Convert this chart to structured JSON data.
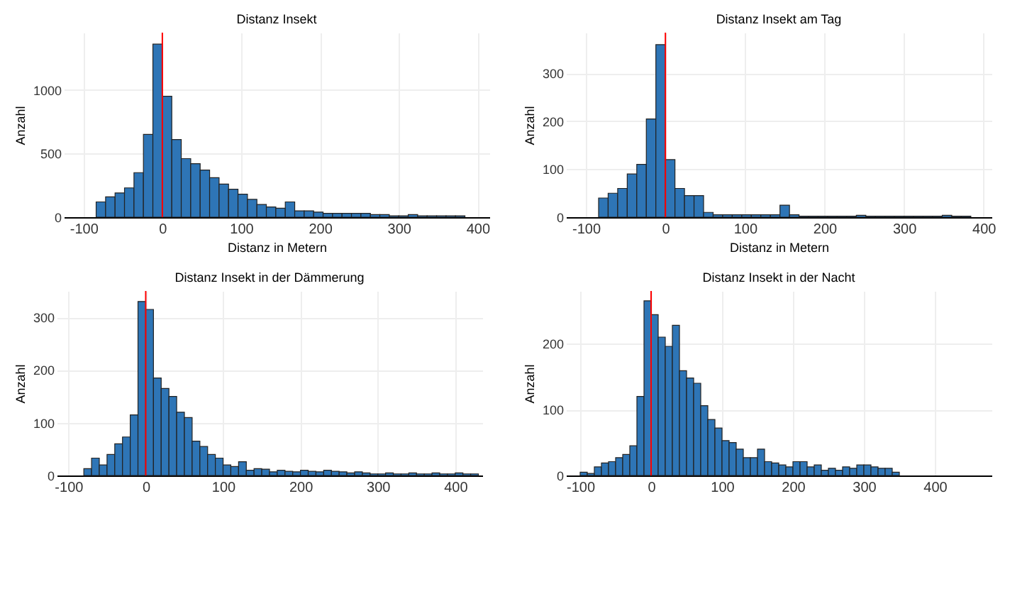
{
  "chart_data": [
    {
      "type": "histogram",
      "title": "Distanz Insekt",
      "xlabel": "Distanz in Metern",
      "ylabel": "Anzahl",
      "grid": true,
      "color": "#2e75b6",
      "xlim": [
        -125,
        415
      ],
      "xticks": [
        -100,
        0,
        100,
        200,
        300,
        400
      ],
      "ylim": [
        0,
        1450
      ],
      "yticks": [
        0,
        500,
        1000
      ],
      "bins": [
        -84,
        -72,
        -60,
        -48,
        -36,
        -24,
        -12,
        0,
        12,
        24,
        36,
        48,
        60,
        72,
        84,
        96,
        108,
        120,
        132,
        144,
        156,
        168,
        180,
        192,
        204,
        216,
        228,
        240,
        252,
        264,
        276,
        288,
        300,
        312,
        324,
        336,
        348,
        360,
        372,
        384
      ],
      "values": [
        120,
        160,
        190,
        230,
        350,
        650,
        1360,
        950,
        610,
        460,
        420,
        370,
        310,
        260,
        220,
        180,
        140,
        100,
        80,
        70,
        120,
        50,
        50,
        40,
        30,
        30,
        30,
        30,
        30,
        20,
        20,
        10,
        10,
        20,
        10,
        10,
        10,
        10,
        10
      ],
      "ref_lines": [
        {
          "axis": "x",
          "value": 0,
          "color": "#ff0000"
        }
      ]
    },
    {
      "type": "histogram",
      "title": "Distanz Insekt am Tag",
      "xlabel": "Distanz in Metern",
      "ylabel": "Anzahl",
      "grid": true,
      "color": "#2e75b6",
      "xlim": [
        -125,
        410
      ],
      "xticks": [
        -100,
        0,
        100,
        200,
        300,
        400
      ],
      "ylim": [
        0,
        385
      ],
      "yticks": [
        0,
        100,
        200,
        300
      ],
      "bins": [
        -84,
        -72,
        -60,
        -48,
        -36,
        -24,
        -12,
        0,
        12,
        24,
        36,
        48,
        60,
        72,
        84,
        96,
        108,
        120,
        132,
        144,
        156,
        168,
        180,
        192,
        204,
        216,
        228,
        240,
        252,
        264,
        276,
        288,
        300,
        312,
        324,
        336,
        348,
        360,
        372,
        384
      ],
      "values": [
        40,
        50,
        60,
        90,
        110,
        205,
        360,
        120,
        60,
        45,
        45,
        10,
        5,
        5,
        5,
        5,
        5,
        5,
        5,
        25,
        5,
        2,
        2,
        2,
        2,
        2,
        2,
        4,
        2,
        2,
        2,
        2,
        2,
        2,
        2,
        2,
        4,
        2,
        2
      ],
      "ref_lines": [
        {
          "axis": "x",
          "value": 0,
          "color": "#ff0000"
        }
      ]
    },
    {
      "type": "histogram",
      "title": "Distanz Insekt in der Dämmerung",
      "ylabel": "Anzahl",
      "grid": true,
      "color": "#2e75b6",
      "xlim": [
        -115,
        435
      ],
      "xticks": [
        -100,
        0,
        100,
        200,
        300,
        400
      ],
      "ylim": [
        0,
        350
      ],
      "yticks": [
        0,
        100,
        200,
        300
      ],
      "bins": [
        -80,
        -70,
        -60,
        -50,
        -40,
        -30,
        -20,
        -10,
        0,
        10,
        20,
        30,
        40,
        50,
        60,
        70,
        80,
        90,
        100,
        110,
        120,
        130,
        140,
        150,
        160,
        170,
        180,
        190,
        200,
        210,
        220,
        230,
        240,
        250,
        260,
        270,
        280,
        290,
        300,
        310,
        320,
        330,
        340,
        350,
        360,
        370,
        380,
        390,
        400,
        410,
        420,
        430
      ],
      "values": [
        13,
        33,
        20,
        40,
        60,
        73,
        115,
        330,
        315,
        185,
        165,
        150,
        120,
        110,
        65,
        55,
        40,
        33,
        20,
        17,
        26,
        10,
        13,
        12,
        7,
        10,
        8,
        7,
        10,
        8,
        7,
        10,
        8,
        7,
        5,
        7,
        5,
        3,
        3,
        5,
        3,
        3,
        5,
        3,
        3,
        5,
        3,
        3,
        5,
        3,
        3
      ],
      "ref_lines": [
        {
          "axis": "x",
          "value": 0,
          "color": "#ff0000"
        }
      ]
    },
    {
      "type": "histogram",
      "title": "Distanz Insekt in der Nacht",
      "ylabel": "Anzahl",
      "grid": true,
      "color": "#2e75b6",
      "xlim": [
        -120,
        480
      ],
      "xticks": [
        -100,
        0,
        100,
        200,
        300,
        400
      ],
      "ylim": [
        0,
        280
      ],
      "yticks": [
        0,
        100,
        200
      ],
      "bins": [
        -100,
        -90,
        -80,
        -70,
        -60,
        -50,
        -40,
        -30,
        -20,
        -10,
        0,
        10,
        20,
        30,
        40,
        50,
        60,
        70,
        80,
        90,
        100,
        110,
        120,
        130,
        140,
        150,
        160,
        170,
        180,
        190,
        200,
        210,
        220,
        230,
        240,
        250,
        260,
        270,
        280,
        290,
        300,
        310,
        320,
        330,
        340,
        350
      ],
      "values": [
        5,
        3,
        13,
        19,
        21,
        27,
        32,
        45,
        120,
        265,
        244,
        210,
        196,
        228,
        159,
        148,
        140,
        106,
        85,
        72,
        53,
        50,
        40,
        27,
        27,
        40,
        21,
        19,
        16,
        13,
        21,
        21,
        13,
        16,
        8,
        11,
        8,
        13,
        11,
        16,
        16,
        13,
        11,
        11,
        5
      ],
      "ref_lines": [
        {
          "axis": "x",
          "value": 0,
          "color": "#ff0000"
        }
      ]
    }
  ]
}
